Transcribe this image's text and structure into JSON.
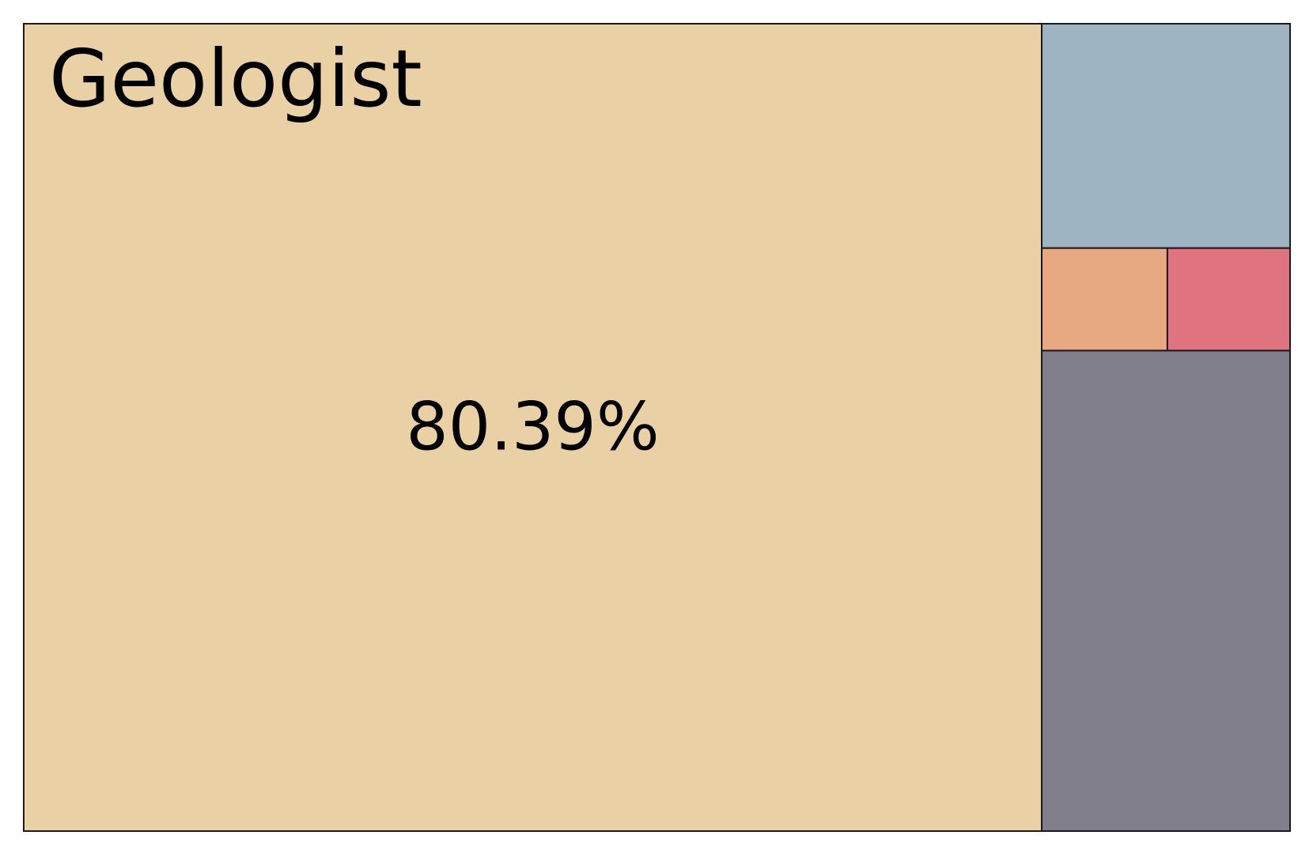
{
  "chart_data": {
    "type": "treemap",
    "title": "",
    "items": [
      {
        "label": "Geologist",
        "value": 80.39,
        "value_label": "80.39%",
        "color": "#e9d1a5"
      },
      {
        "label": "",
        "value": 5.45,
        "value_label": "",
        "color": "#9fb4c2"
      },
      {
        "label": "",
        "value": 1.26,
        "value_label": "",
        "color": "#e8a982"
      },
      {
        "label": "",
        "value": 1.23,
        "value_label": "",
        "color": "#df7480"
      },
      {
        "label": "",
        "value": 11.67,
        "value_label": "",
        "color": "#807f8b"
      }
    ],
    "border_color": "#1a1a1a"
  }
}
